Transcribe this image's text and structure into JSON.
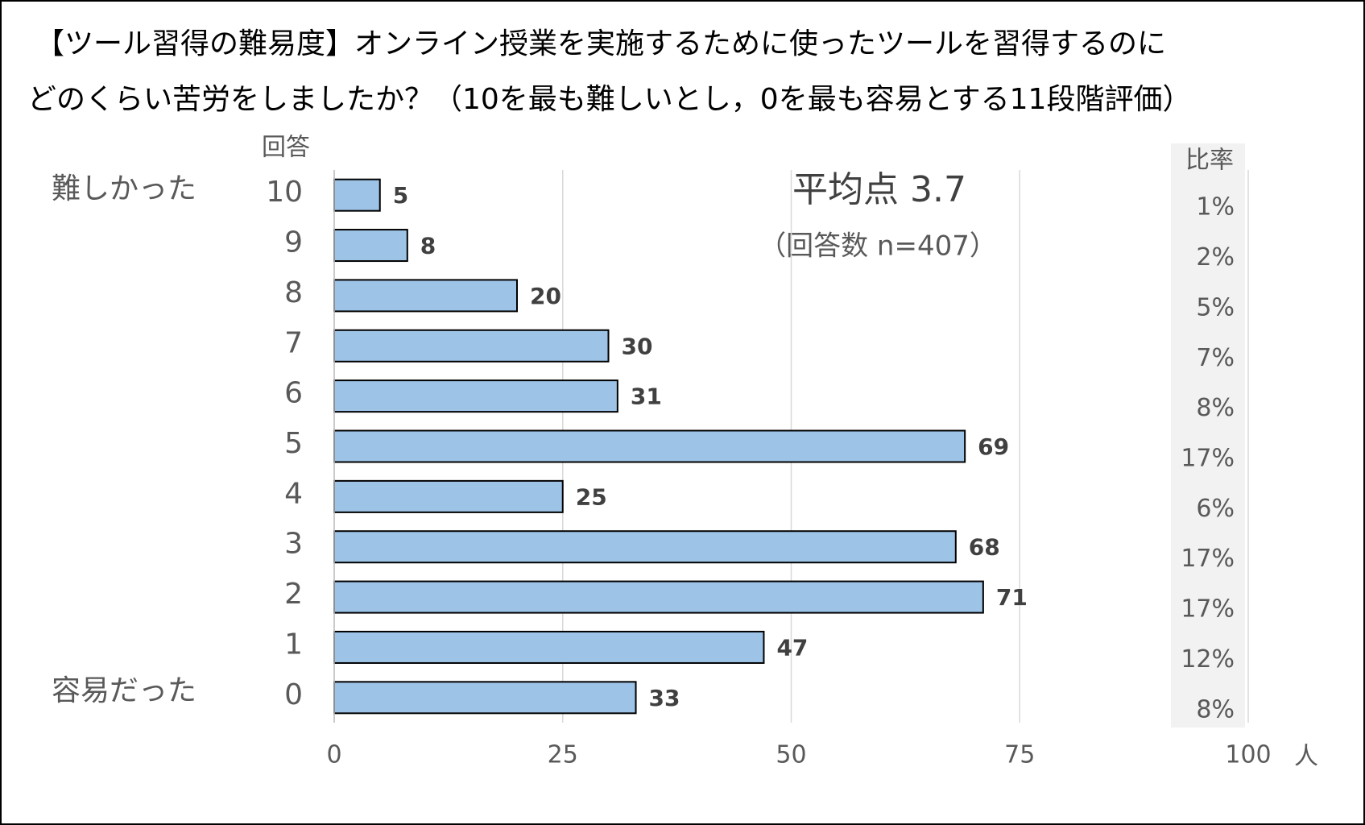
{
  "chart_data": {
    "type": "bar",
    "title": [
      "【ツール習得の難易度】オンライン授業を実施するために使ったツールを習得するのに",
      "どのくらい苦労をしましたか？（10を最も難しいとし，0を最も容易とする11段階評価）"
    ],
    "y_axis_label": "回答",
    "categories": [
      "10",
      "9",
      "8",
      "7",
      "6",
      "5",
      "4",
      "3",
      "2",
      "1",
      "0"
    ],
    "values": [
      5,
      8,
      20,
      30,
      31,
      69,
      25,
      68,
      71,
      47,
      33
    ],
    "color": "#9dc3e6",
    "xlim": [
      0,
      100
    ],
    "xticks": [
      0,
      25,
      50,
      75,
      100
    ],
    "x_unit": "人",
    "grid": true,
    "ratio_header": "比率",
    "ratio_labels": [
      "1%",
      "2%",
      "5%",
      "7%",
      "8%",
      "17%",
      "6%",
      "17%",
      "17%",
      "12%",
      "8%"
    ],
    "annotations": {
      "top_label": "難しかった",
      "bottom_label": "容易だった",
      "mean": "平均点 3.7",
      "n": "（回答数 n=407）"
    }
  }
}
